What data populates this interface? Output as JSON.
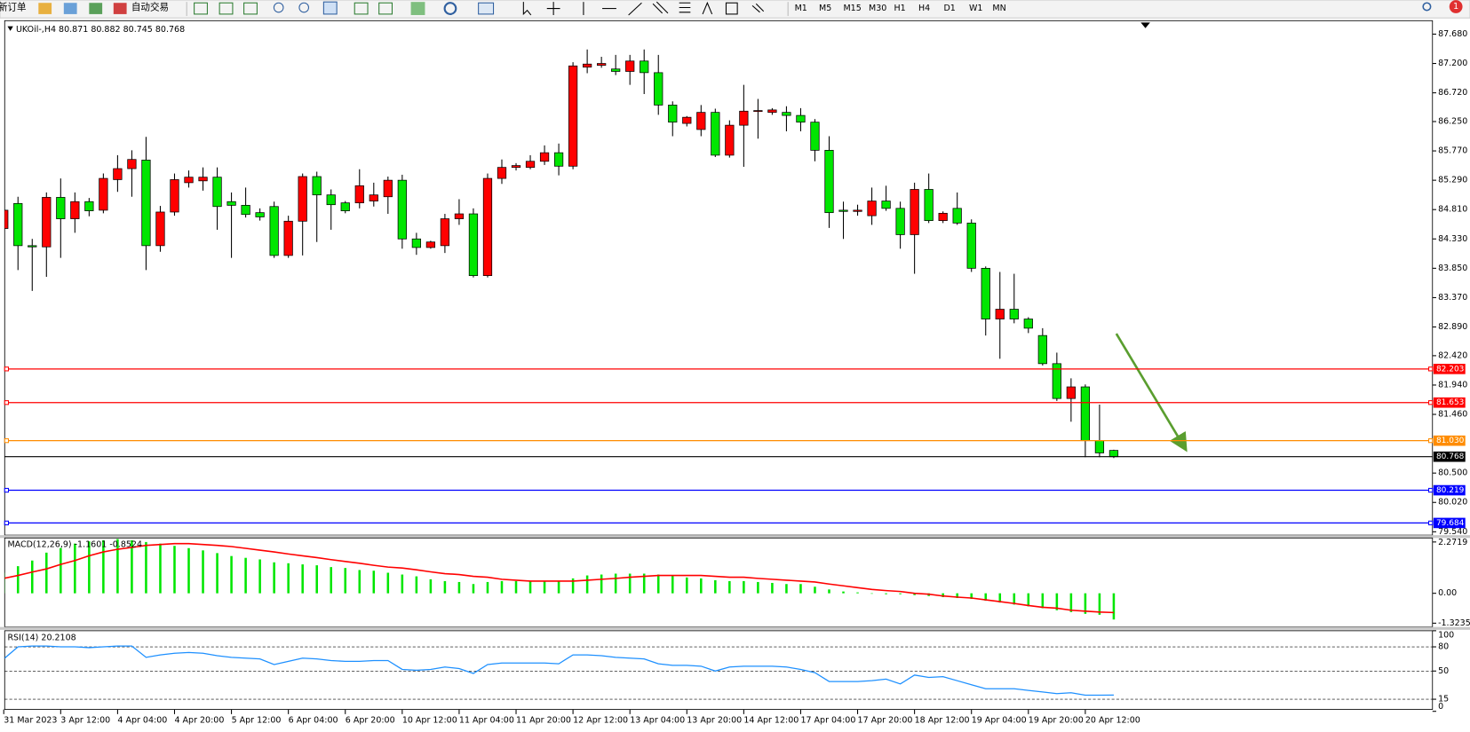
{
  "toolbar": {
    "new_order": "新订单",
    "autotrade": "自动交易",
    "timeframes": [
      "M1",
      "M5",
      "M15",
      "M30",
      "H1",
      "H4",
      "D1",
      "W1",
      "MN"
    ],
    "badge": "1"
  },
  "chart_data": [
    {
      "type": "candlestick",
      "symbol": "UKOil-,H4",
      "up_color": "#ff0000",
      "down_color": "#00e600",
      "wick_color": "#000000",
      "current_price_line": true,
      "categories": [
        "31 Mar 2023",
        null,
        null,
        null,
        "3 Apr 12:00",
        null,
        null,
        null,
        "4 Apr 04:00",
        null,
        null,
        null,
        "4 Apr 20:00",
        null,
        null,
        null,
        "5 Apr 12:00",
        null,
        null,
        null,
        "6 Apr 04:00",
        null,
        null,
        null,
        "6 Apr 20:00",
        null,
        null,
        null,
        "10 Apr 12:00",
        null,
        null,
        null,
        "11 Apr 04:00",
        null,
        null,
        null,
        "11 Apr 20:00",
        null,
        null,
        null,
        "12 Apr 12:00",
        null,
        null,
        null,
        "13 Apr 04:00",
        null,
        null,
        null,
        "13 Apr 20:00",
        null,
        null,
        null,
        "14 Apr 12:00",
        null,
        null,
        null,
        "17 Apr 04:00",
        null,
        null,
        null,
        "17 Apr 20:00",
        null,
        null,
        null,
        "18 Apr 12:00",
        null,
        null,
        null,
        "19 Apr 04:00",
        null,
        null,
        null,
        "19 Apr 20:00",
        null,
        null,
        null,
        "20 Apr 12:00",
        null,
        null
      ],
      "open": [
        84.5,
        84.91,
        84.22,
        84.2,
        85.01,
        84.66,
        84.94,
        84.8,
        85.3,
        85.48,
        85.62,
        84.22,
        84.77,
        85.25,
        85.28,
        85.34,
        84.94,
        84.88,
        84.76,
        84.86,
        84.06,
        84.62,
        85.35,
        85.05,
        84.92,
        84.92,
        84.95,
        85.02,
        85.29,
        84.33,
        84.19,
        84.22,
        84.66,
        84.74,
        83.73,
        85.32,
        85.5,
        85.5,
        85.6,
        85.74,
        85.52,
        87.14,
        87.17,
        87.11,
        87.07,
        87.24,
        87.05,
        86.52,
        86.22,
        86.12,
        86.4,
        85.7,
        86.19,
        86.42,
        86.4,
        86.4,
        86.35,
        86.24,
        85.78,
        84.8,
        84.78,
        84.71,
        84.95,
        84.83,
        84.4,
        85.14,
        84.63,
        84.83,
        84.59,
        83.85,
        83.02,
        83.18,
        83.02,
        82.75,
        82.29,
        81.72,
        81.91,
        81.03,
        80.871
      ],
      "high": [
        84.95,
        85.02,
        84.33,
        85.09,
        85.32,
        85.09,
        85.0,
        85.4,
        85.7,
        85.78,
        86.0,
        84.87,
        85.4,
        85.45,
        85.5,
        85.5,
        85.09,
        85.17,
        84.83,
        84.94,
        84.71,
        85.4,
        85.43,
        85.14,
        84.95,
        85.47,
        85.25,
        85.35,
        85.38,
        84.43,
        84.3,
        84.74,
        84.98,
        84.83,
        85.4,
        85.63,
        85.57,
        85.7,
        85.86,
        85.89,
        87.22,
        87.43,
        87.31,
        87.34,
        87.34,
        87.43,
        87.34,
        86.58,
        86.34,
        86.52,
        86.46,
        86.27,
        86.85,
        86.62,
        86.47,
        86.5,
        86.47,
        86.29,
        86.01,
        84.94,
        84.89,
        85.17,
        85.2,
        84.94,
        85.25,
        85.4,
        84.78,
        85.09,
        84.65,
        83.88,
        83.79,
        83.76,
        83.05,
        82.87,
        82.47,
        82.05,
        81.95,
        81.62,
        80.882
      ],
      "low": [
        84.3,
        83.82,
        83.48,
        83.71,
        84.02,
        84.43,
        84.7,
        84.75,
        85.1,
        85.02,
        83.82,
        84.12,
        84.71,
        85.17,
        85.12,
        84.48,
        84.02,
        84.68,
        84.63,
        84.02,
        84.02,
        84.06,
        84.28,
        84.48,
        84.75,
        84.83,
        84.86,
        84.74,
        84.17,
        84.07,
        84.17,
        84.1,
        84.56,
        83.7,
        83.7,
        85.23,
        85.45,
        85.47,
        85.54,
        85.37,
        85.47,
        87.04,
        87.13,
        87.01,
        86.85,
        86.7,
        86.36,
        86.01,
        86.17,
        86.01,
        85.67,
        85.66,
        85.51,
        85.97,
        86.36,
        86.09,
        86.09,
        85.6,
        84.51,
        84.33,
        84.71,
        84.56,
        84.79,
        84.17,
        83.76,
        84.59,
        84.59,
        84.56,
        83.79,
        82.75,
        82.37,
        82.95,
        82.79,
        82.26,
        81.68,
        81.34,
        80.76,
        80.76,
        80.745
      ],
      "close": [
        84.8,
        84.22,
        84.2,
        85.01,
        84.66,
        84.94,
        84.79,
        85.32,
        85.48,
        85.63,
        84.22,
        84.77,
        85.3,
        85.34,
        85.34,
        84.86,
        84.88,
        84.73,
        84.69,
        84.06,
        84.62,
        85.35,
        85.05,
        84.89,
        84.79,
        85.2,
        85.05,
        85.29,
        84.33,
        84.19,
        84.28,
        84.66,
        84.74,
        83.73,
        85.32,
        85.5,
        85.53,
        85.6,
        85.74,
        85.52,
        87.16,
        87.19,
        87.2,
        87.07,
        87.24,
        87.05,
        86.52,
        86.24,
        86.32,
        86.4,
        85.7,
        86.19,
        86.42,
        86.43,
        86.44,
        86.35,
        86.24,
        85.78,
        84.76,
        84.78,
        84.8,
        84.95,
        84.83,
        84.4,
        85.14,
        84.63,
        84.75,
        84.59,
        83.85,
        83.02,
        83.18,
        83.02,
        82.87,
        82.29,
        81.72,
        81.91,
        81.03,
        80.83,
        80.768
      ],
      "ylim": [
        79.5,
        87.9
      ],
      "yticks": [
        {
          "value": 87.68,
          "label": "87.680"
        },
        {
          "value": 87.2,
          "label": "87.200"
        },
        {
          "value": 86.72,
          "label": "86.720"
        },
        {
          "value": 86.25,
          "label": "86.250"
        },
        {
          "value": 85.77,
          "label": "85.770"
        },
        {
          "value": 85.29,
          "label": "85.290"
        },
        {
          "value": 84.81,
          "label": "84.810"
        },
        {
          "value": 84.33,
          "label": "84.330"
        },
        {
          "value": 83.85,
          "label": "83.850"
        },
        {
          "value": 83.37,
          "label": "83.370"
        },
        {
          "value": 82.89,
          "label": "82.890"
        },
        {
          "value": 82.42,
          "label": "82.420"
        },
        {
          "value": 81.94,
          "label": "81.940"
        },
        {
          "value": 81.46,
          "label": "81.460"
        },
        {
          "value": 80.5,
          "label": "80.500"
        },
        {
          "value": 80.02,
          "label": "80.020"
        },
        {
          "value": 79.54,
          "label": "79.540"
        }
      ],
      "levels": [
        {
          "value": 82.203,
          "color": "#ff0000"
        },
        {
          "value": 81.653,
          "color": "#ff0000"
        },
        {
          "value": 81.03,
          "label": "81.030",
          "color": "#ff8c00"
        },
        {
          "value": 80.219,
          "color": "#0000ff"
        },
        {
          "value": 79.684,
          "color": "#0000ff"
        }
      ]
    },
    {
      "type": "macd",
      "title": "MACD(12,26,9)",
      "color": "#00e600",
      "signal_color": "#ff0000",
      "values": [
        0.91,
        1.2,
        1.45,
        1.8,
        2.0,
        2.2,
        2.3,
        2.35,
        2.4,
        2.35,
        2.27,
        2.2,
        2.1,
        2.0,
        1.9,
        1.78,
        1.65,
        1.57,
        1.5,
        1.37,
        1.33,
        1.28,
        1.24,
        1.16,
        1.12,
        1.03,
        1.0,
        0.91,
        0.83,
        0.75,
        0.62,
        0.54,
        0.5,
        0.41,
        0.5,
        0.54,
        0.54,
        0.54,
        0.54,
        0.54,
        0.66,
        0.79,
        0.83,
        0.87,
        0.87,
        0.87,
        0.83,
        0.79,
        0.7,
        0.66,
        0.58,
        0.54,
        0.54,
        0.5,
        0.46,
        0.41,
        0.41,
        0.29,
        0.17,
        0.08,
        0.04,
        0,
        -0.04,
        -0.04,
        -0.08,
        -0.12,
        -0.17,
        -0.21,
        -0.25,
        -0.33,
        -0.41,
        -0.5,
        -0.58,
        -0.66,
        -0.75,
        -0.83,
        -0.91,
        -0.95,
        -1.1601
      ],
      "signal": [
        0.66,
        0.79,
        0.94,
        1.08,
        1.28,
        1.45,
        1.66,
        1.83,
        1.95,
        2.03,
        2.12,
        2.16,
        2.2,
        2.2,
        2.16,
        2.12,
        2.07,
        1.99,
        1.91,
        1.83,
        1.74,
        1.66,
        1.58,
        1.49,
        1.41,
        1.33,
        1.24,
        1.16,
        1.12,
        1.04,
        0.95,
        0.87,
        0.83,
        0.75,
        0.71,
        0.62,
        0.58,
        0.54,
        0.54,
        0.54,
        0.54,
        0.58,
        0.62,
        0.66,
        0.71,
        0.75,
        0.79,
        0.79,
        0.79,
        0.79,
        0.75,
        0.71,
        0.71,
        0.66,
        0.62,
        0.58,
        0.54,
        0.5,
        0.41,
        0.33,
        0.25,
        0.17,
        0.12,
        0.08,
        0,
        -0.04,
        -0.12,
        -0.17,
        -0.21,
        -0.29,
        -0.37,
        -0.45,
        -0.54,
        -0.62,
        -0.66,
        -0.75,
        -0.79,
        -0.83,
        -0.8524
      ],
      "ylim": [
        -1.45,
        2.45
      ],
      "yticks": [
        2.2719,
        {
          "value": 0,
          "label": "0.00"
        },
        -1.3235
      ]
    },
    {
      "type": "rsi",
      "title": "RSI(14)",
      "color": "#1e90ff",
      "grid": "dashed",
      "values": [
        65,
        80,
        81,
        81,
        80,
        80,
        79,
        80,
        81,
        81,
        67,
        70,
        72,
        73,
        72,
        69,
        67,
        66,
        65,
        58,
        62,
        66,
        65,
        63,
        62,
        62,
        63,
        63,
        52,
        51,
        52,
        55,
        53,
        47,
        58,
        60,
        60,
        60,
        60,
        59,
        70,
        70,
        69,
        67,
        66,
        65,
        59,
        57,
        57,
        56,
        50,
        55,
        56,
        56,
        56,
        55,
        52,
        48,
        37,
        37,
        37,
        38,
        40,
        34,
        45,
        42,
        43,
        38,
        33,
        28,
        28,
        28,
        26,
        24,
        22,
        23,
        20,
        20,
        20.2108
      ],
      "ylim": [
        0,
        100
      ],
      "yticks": [
        100,
        80,
        50,
        15,
        0
      ]
    }
  ]
}
